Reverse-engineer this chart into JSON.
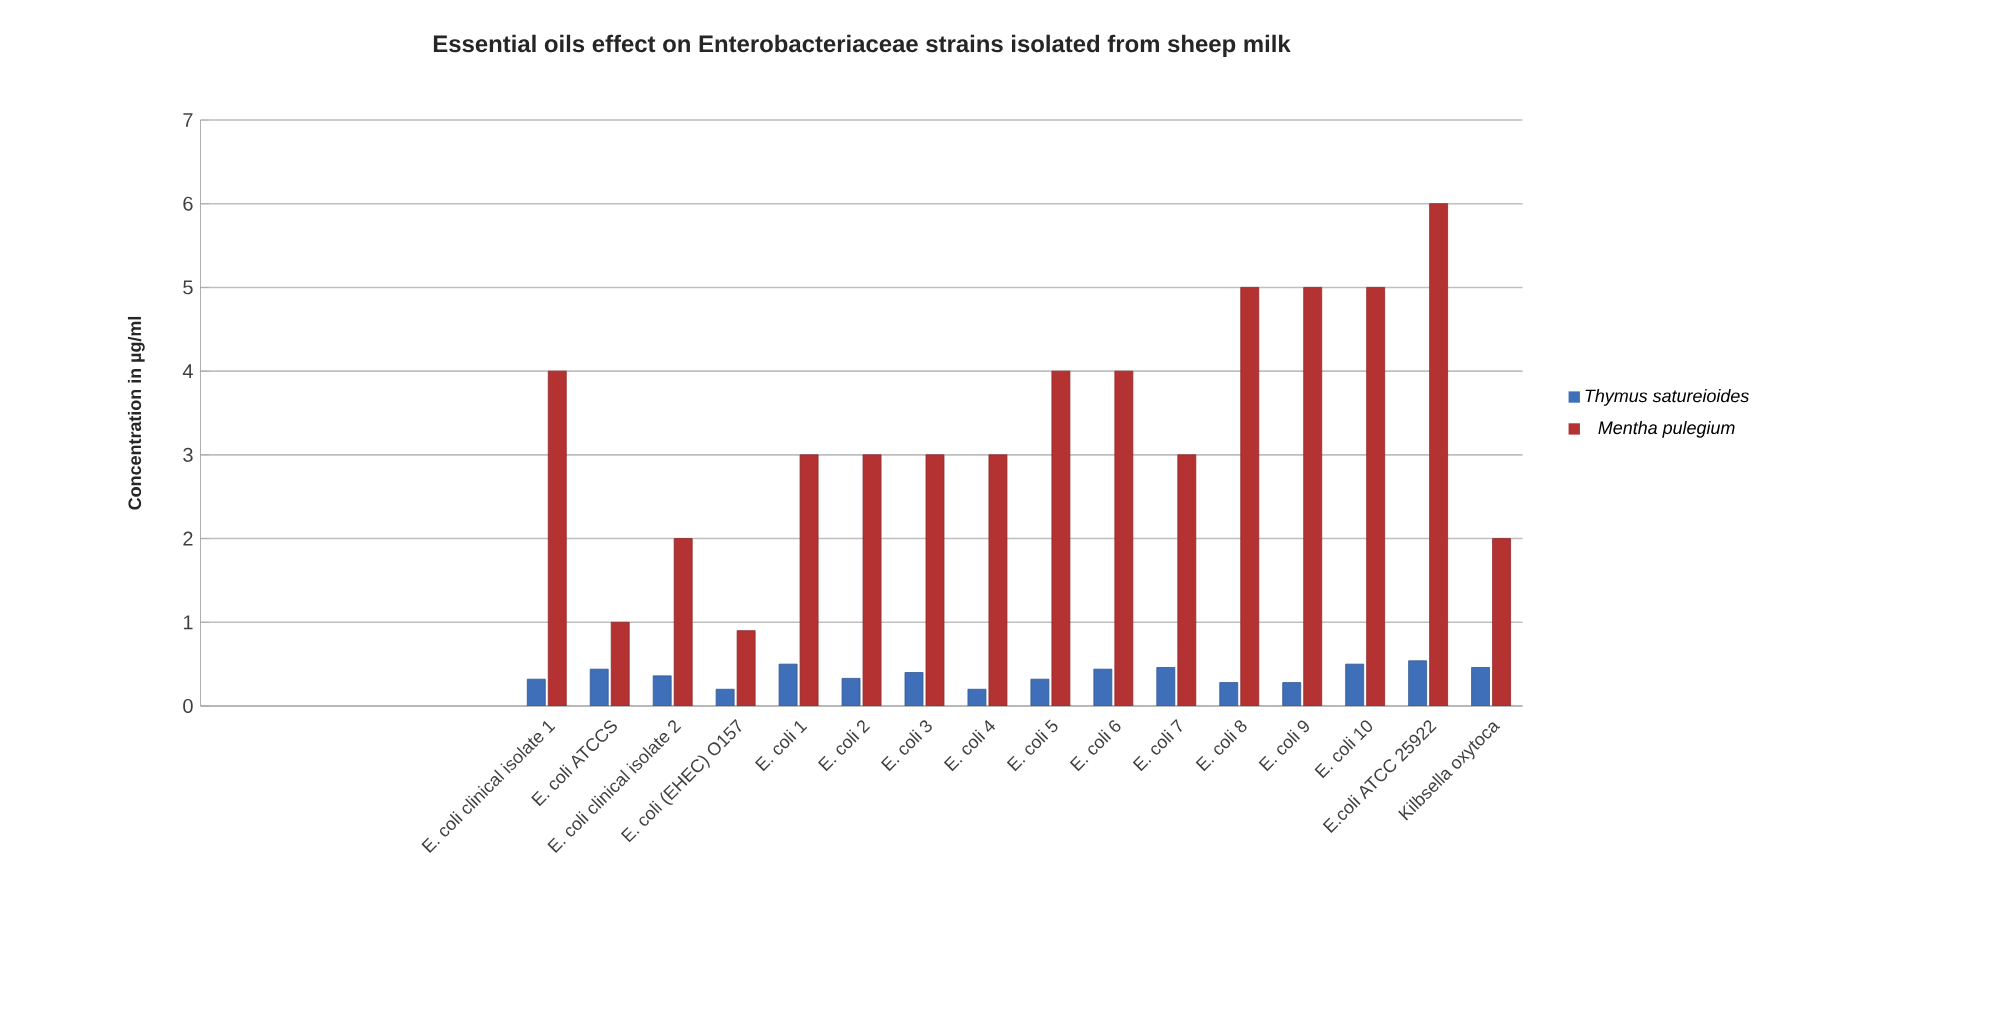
{
  "chart_data": {
    "type": "bar",
    "title": "Essential oils effect on Enterobacteriaceae strains isolated from sheep milk",
    "ylabel": "Concentration in µg/ml",
    "categories": [
      null,
      null,
      null,
      null,
      null,
      "E. coli  clinical isolate 1",
      "E. coli ATCCS",
      "E. coli  clinical isolate 2",
      "E. coli  (EHEC) O157",
      "E. coli 1",
      "E. coli 2",
      "E. coli 3",
      "E. coli 4",
      "E. coli 5",
      "E. coli 6",
      "E. coli 7",
      "E. coli 8",
      "E. coli 9",
      "E. coli 10",
      "E.coli ATCC 25922",
      "Kilbsella oxytoca"
    ],
    "series": [
      {
        "name": "Thymus satureioides",
        "color": "#3f6fb8",
        "values": [
          null,
          null,
          null,
          null,
          null,
          0.32,
          0.44,
          0.36,
          0.2,
          0.5,
          0.33,
          0.4,
          0.2,
          0.32,
          0.44,
          0.46,
          0.28,
          0.28,
          0.5,
          0.54,
          0.46
        ]
      },
      {
        "name": "Mentha pulegium",
        "color": "#b53232",
        "values": [
          null,
          null,
          null,
          null,
          null,
          4,
          1,
          2,
          0.9,
          3,
          3,
          3,
          3,
          4,
          4,
          3,
          5,
          5,
          5,
          6,
          2
        ]
      }
    ],
    "ylim": [
      0,
      7
    ],
    "yticks": [
      0,
      1,
      2,
      3,
      4,
      5,
      6,
      7
    ],
    "grid": "y",
    "legend": "right"
  }
}
